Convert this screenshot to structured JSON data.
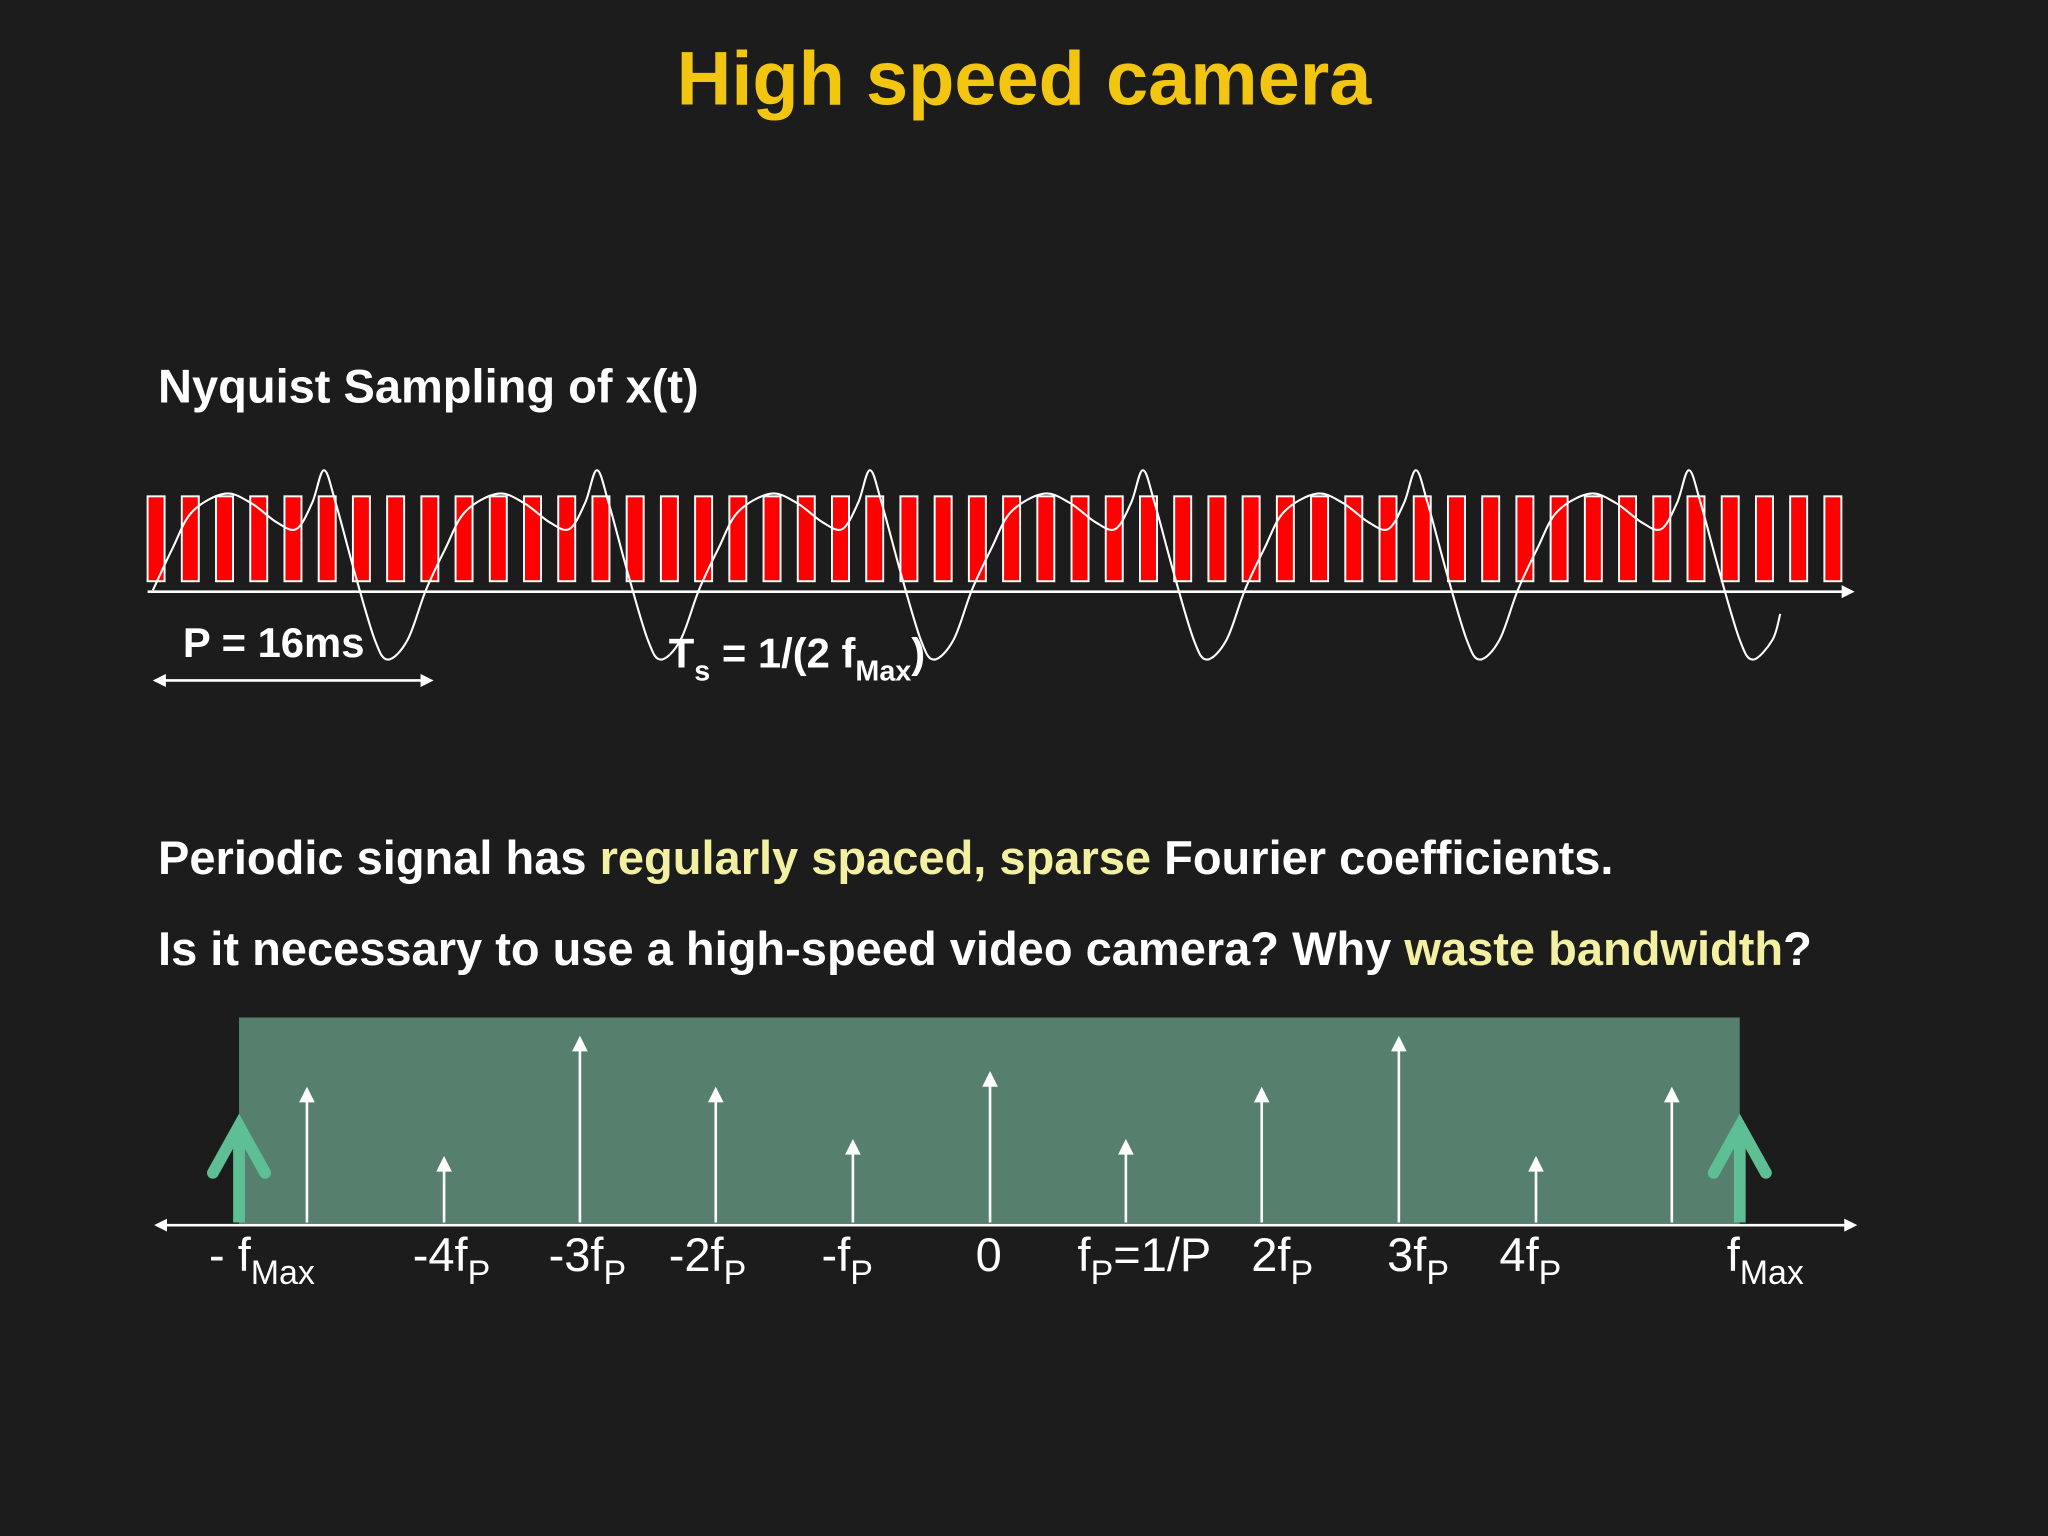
{
  "title": "High speed camera",
  "sampling": {
    "heading": "Nyquist Sampling of x(t)",
    "period_label": "P = 16ms",
    "ts_label": {
      "main": "T",
      "sub": "s",
      "middle": " = 1/(2 f",
      "sub2": "Max",
      "end": ")"
    }
  },
  "text": {
    "line1": [
      "Periodic signal has ",
      "regularly spaced, sparse",
      " Fourier coefficients."
    ],
    "line2": [
      "Is it necessary to use a high-speed video camera? Why ",
      "waste bandwidth",
      "?"
    ]
  },
  "spectrum": {
    "labels": [
      {
        "text": "- f",
        "sub": "Max"
      },
      {
        "text": "-4f",
        "sub": "P"
      },
      {
        "text": "-3f",
        "sub": "P"
      },
      {
        "text": "-2f",
        "sub": "P"
      },
      {
        "text": "-f",
        "sub": "P"
      },
      {
        "text": "0"
      },
      {
        "text": "f",
        "sub": "P",
        "after": "=1/P"
      },
      {
        "text": "2f",
        "sub": "P"
      },
      {
        "text": "3f",
        "sub": "P"
      },
      {
        "text": "4f",
        "sub": "P"
      },
      {
        "text": "f",
        "sub": "Max"
      }
    ]
  }
}
